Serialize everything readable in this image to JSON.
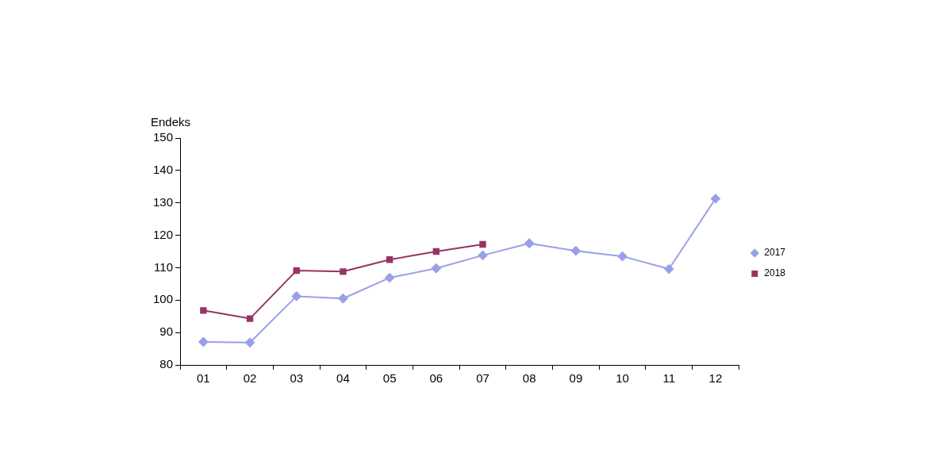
{
  "chart_data": {
    "type": "line",
    "ylabel": "Endeks",
    "categories": [
      "01",
      "02",
      "03",
      "04",
      "05",
      "06",
      "07",
      "08",
      "09",
      "10",
      "11",
      "12"
    ],
    "series": [
      {
        "name": "2017",
        "color": "#99a0e6",
        "marker": "diamond",
        "values": [
          87.1,
          86.9,
          101.2,
          100.5,
          106.9,
          109.8,
          113.8,
          117.5,
          115.2,
          113.5,
          109.6,
          131.3
        ]
      },
      {
        "name": "2018",
        "color": "#993366",
        "marker": "square",
        "values": [
          96.8,
          94.3,
          109.1,
          108.8,
          112.5,
          115.0,
          117.2,
          null,
          null,
          null,
          null,
          null
        ]
      }
    ],
    "ylim": [
      80,
      150
    ],
    "yticks": [
      80,
      90,
      100,
      110,
      120,
      130,
      140,
      150
    ],
    "legend": "right",
    "line_style": "solid"
  }
}
